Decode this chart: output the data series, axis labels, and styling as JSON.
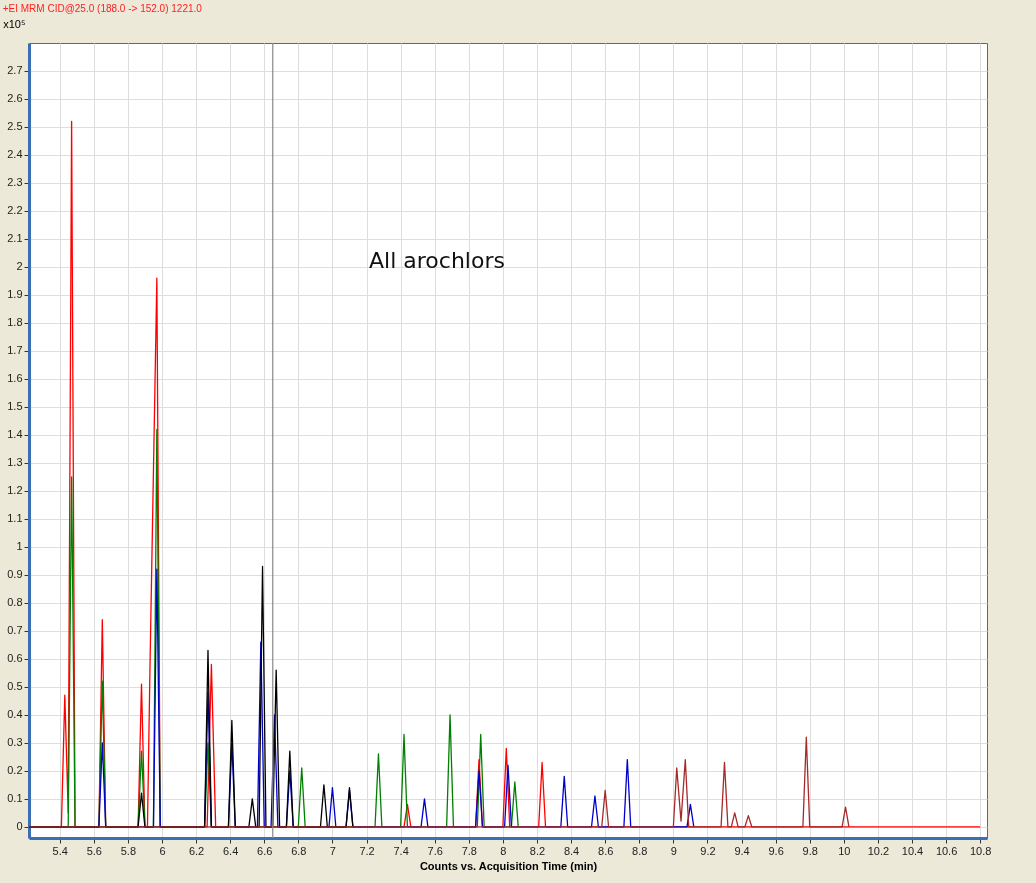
{
  "chart_data": {
    "type": "line",
    "title": "+EI MRM CID@25.0 (188.0 -> 152.0) 1221.0",
    "xlabel": "Counts vs. Acquisition Time (min)",
    "ylabel": "x10⁵",
    "annotations": [
      "All arochlors"
    ],
    "xlim": [
      5.22,
      10.84
    ],
    "ylim": [
      -0.04,
      2.8
    ],
    "xticks": [
      5.4,
      5.6,
      5.8,
      6,
      6.2,
      6.4,
      6.6,
      6.8,
      7,
      7.2,
      7.4,
      7.6,
      7.8,
      8,
      8.2,
      8.4,
      8.6,
      8.8,
      9,
      9.2,
      9.4,
      9.6,
      9.8,
      10,
      10.2,
      10.4,
      10.6,
      10.8
    ],
    "yticks": [
      0,
      0.1,
      0.2,
      0.3,
      0.4,
      0.5,
      0.6,
      0.7,
      0.8,
      0.9,
      1,
      1.1,
      1.2,
      1.3,
      1.4,
      1.5,
      1.6,
      1.7,
      1.8,
      1.9,
      2,
      2.1,
      2.2,
      2.3,
      2.4,
      2.5,
      2.6,
      2.7
    ],
    "grid": true,
    "ref_lines": [
      {
        "axis": "x",
        "value": 6.65,
        "color": "#888888"
      }
    ],
    "series": [
      {
        "color": "#ff0000",
        "x": [
          5.22,
          5.41,
          5.43,
          5.45,
          5.47,
          5.49,
          5.63,
          5.65,
          5.67,
          5.86,
          5.88,
          5.9,
          5.915,
          5.93,
          5.97,
          5.99,
          6.265,
          6.29,
          6.315,
          7.42,
          7.44,
          7.46,
          7.84,
          7.86,
          7.88,
          8.0,
          8.02,
          8.04,
          8.21,
          8.23,
          8.25,
          10.8
        ],
        "values": [
          0,
          0,
          0.47,
          0.05,
          2.52,
          0,
          0,
          0.74,
          0,
          0,
          0.51,
          0,
          0,
          0.58,
          1.96,
          0,
          0,
          0.58,
          0,
          0,
          0.08,
          0,
          0,
          0.24,
          0,
          0,
          0.28,
          0,
          0,
          0.23,
          0,
          0
        ]
      },
      {
        "color": "#008000",
        "x": [
          5.22,
          5.45,
          5.47,
          5.49,
          5.63,
          5.65,
          5.67,
          5.86,
          5.88,
          5.9,
          5.95,
          5.97,
          5.99,
          6.25,
          6.27,
          6.29,
          6.8,
          6.82,
          6.84,
          7.25,
          7.27,
          7.29,
          7.4,
          7.42,
          7.44,
          7.67,
          7.69,
          7.71,
          7.85,
          7.87,
          7.89,
          8.05,
          8.07,
          8.09
        ],
        "values": [
          0,
          0,
          1.25,
          0,
          0,
          0.52,
          0,
          0,
          0.27,
          0,
          0,
          1.42,
          0,
          0,
          0.3,
          0,
          0,
          0.21,
          0,
          0,
          0.26,
          0,
          0,
          0.33,
          0,
          0,
          0.4,
          0,
          0,
          0.33,
          0,
          0,
          0.16,
          0
        ]
      },
      {
        "color": "#0000cc",
        "x": [
          5.22,
          5.63,
          5.65,
          5.67,
          5.95,
          5.97,
          5.99,
          6.25,
          6.27,
          6.29,
          6.39,
          6.41,
          6.43,
          6.56,
          6.58,
          6.6,
          6.64,
          6.66,
          6.68,
          6.73,
          6.75,
          6.77,
          6.98,
          7.0,
          7.02,
          7.08,
          7.1,
          7.12,
          7.52,
          7.54,
          7.56,
          7.84,
          7.86,
          7.88,
          8.01,
          8.03,
          8.05,
          8.34,
          8.36,
          8.38,
          8.52,
          8.54,
          8.56,
          8.71,
          8.73,
          8.75,
          9.08,
          9.1,
          9.12
        ],
        "values": [
          0,
          0,
          0.3,
          0,
          0,
          0.92,
          0,
          0,
          0.48,
          0,
          0,
          0.3,
          0,
          0,
          0.66,
          0,
          0,
          0.4,
          0,
          0,
          0.2,
          0,
          0,
          0.14,
          0,
          0,
          0.13,
          0,
          0,
          0.1,
          0,
          0,
          0.2,
          0,
          0,
          0.22,
          0,
          0,
          0.18,
          0,
          0,
          0.11,
          0,
          0,
          0.24,
          0,
          0,
          0.08,
          0
        ]
      },
      {
        "color": "#000000",
        "x": [
          5.22,
          5.86,
          5.88,
          5.9,
          6.25,
          6.27,
          6.29,
          6.39,
          6.41,
          6.43,
          6.51,
          6.53,
          6.55,
          6.57,
          6.59,
          6.61,
          6.65,
          6.67,
          6.69,
          6.73,
          6.75,
          6.77,
          6.93,
          6.95,
          6.97,
          7.08,
          7.1,
          7.12
        ],
        "values": [
          0,
          0,
          0.12,
          0,
          0,
          0.63,
          0,
          0,
          0.38,
          0,
          0,
          0.1,
          0,
          0,
          0.93,
          0,
          0,
          0.56,
          0,
          0,
          0.27,
          0,
          0,
          0.15,
          0,
          0,
          0.14,
          0
        ]
      },
      {
        "color": "#a52a2a",
        "x": [
          5.22,
          8.58,
          8.6,
          8.62,
          9.0,
          9.02,
          9.045,
          9.07,
          9.09,
          9.28,
          9.3,
          9.32,
          9.34,
          9.36,
          9.38,
          9.42,
          9.44,
          9.46,
          9.76,
          9.78,
          9.8,
          9.99,
          10.01,
          10.03
        ],
        "values": [
          0,
          0,
          0.13,
          0,
          0,
          0.21,
          0.02,
          0.24,
          0,
          0,
          0.23,
          0,
          0,
          0.05,
          0,
          0,
          0.04,
          0,
          0,
          0.32,
          0,
          0,
          0.07,
          0
        ]
      }
    ]
  }
}
